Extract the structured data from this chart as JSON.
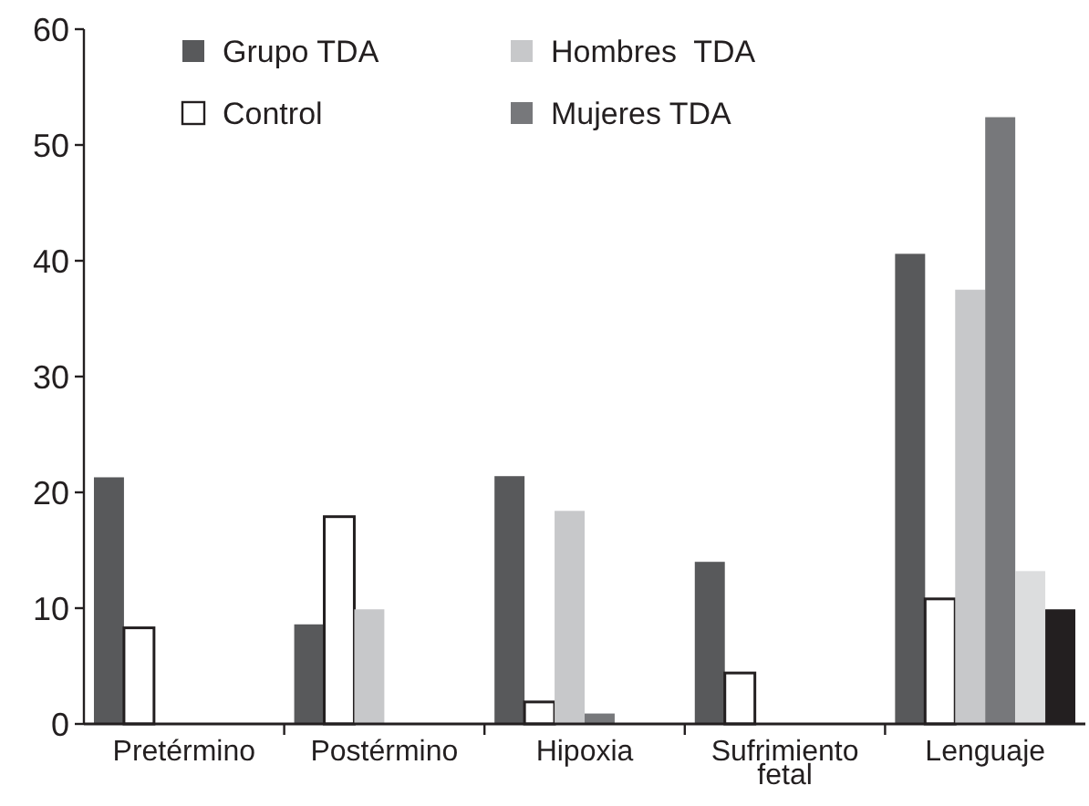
{
  "chart_data": {
    "type": "bar",
    "categories": [
      "Pretérmino",
      "Postérmino",
      "Hipoxia",
      "Sufrimiento fetal",
      "Lenguaje"
    ],
    "series": [
      {
        "name": "Grupo TDA",
        "color": "#58595b",
        "values": [
          21.3,
          8.6,
          21.4,
          14.0,
          40.6
        ]
      },
      {
        "name": "Control",
        "color": "#ffffff",
        "values": [
          8.3,
          17.9,
          1.9,
          4.4,
          10.8
        ]
      },
      {
        "name": "Hombres  TDA",
        "color": "#c7c8ca",
        "values": [
          null,
          9.9,
          18.4,
          null,
          37.5
        ]
      },
      {
        "name": "Mujeres TDA",
        "color": "#77787b",
        "values": [
          null,
          null,
          0.9,
          null,
          52.4
        ]
      },
      {
        "color": "#dcddde",
        "values": [
          null,
          null,
          null,
          null,
          13.2
        ]
      },
      {
        "color": "#231f20",
        "values": [
          null,
          null,
          null,
          null,
          9.9
        ]
      }
    ],
    "ylim": [
      0,
      60
    ],
    "yticks": [
      0,
      10,
      20,
      30,
      40,
      50,
      60
    ],
    "grid": false,
    "legend": "top"
  }
}
